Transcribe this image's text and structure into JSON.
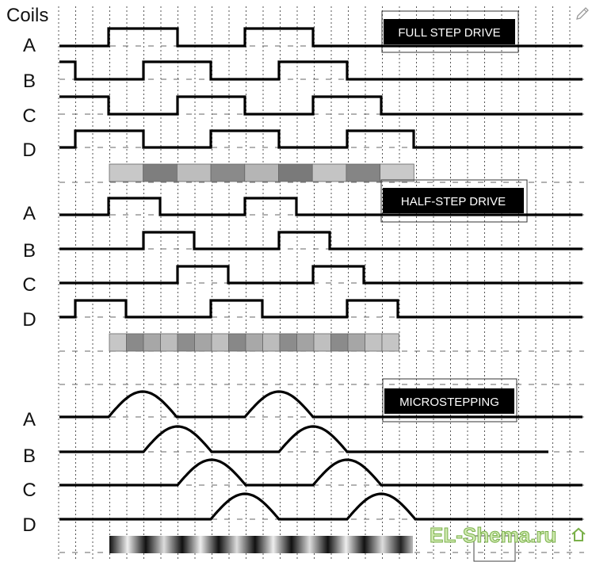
{
  "header": {
    "coils_label": "Coils"
  },
  "sections": [
    {
      "title": "FULL STEP DRIVE",
      "rows": [
        "A",
        "B",
        "C",
        "D"
      ]
    },
    {
      "title": "HALF-STEP DRIVE",
      "rows": [
        "A",
        "B",
        "C",
        "D"
      ]
    },
    {
      "title": "MICROSTEPPING",
      "rows": [
        "A",
        "B",
        "C",
        "D"
      ]
    }
  ],
  "watermark": {
    "text": "EL-Shema.ru"
  },
  "colors": {
    "background": "#ffffff",
    "wave": "#000000",
    "title_bg": "#000000",
    "title_text": "#ffffff",
    "logo_fill": "#cfe9b0",
    "logo_stroke": "#7ab04a"
  },
  "icons": {
    "corner": "pencil-icon"
  }
}
